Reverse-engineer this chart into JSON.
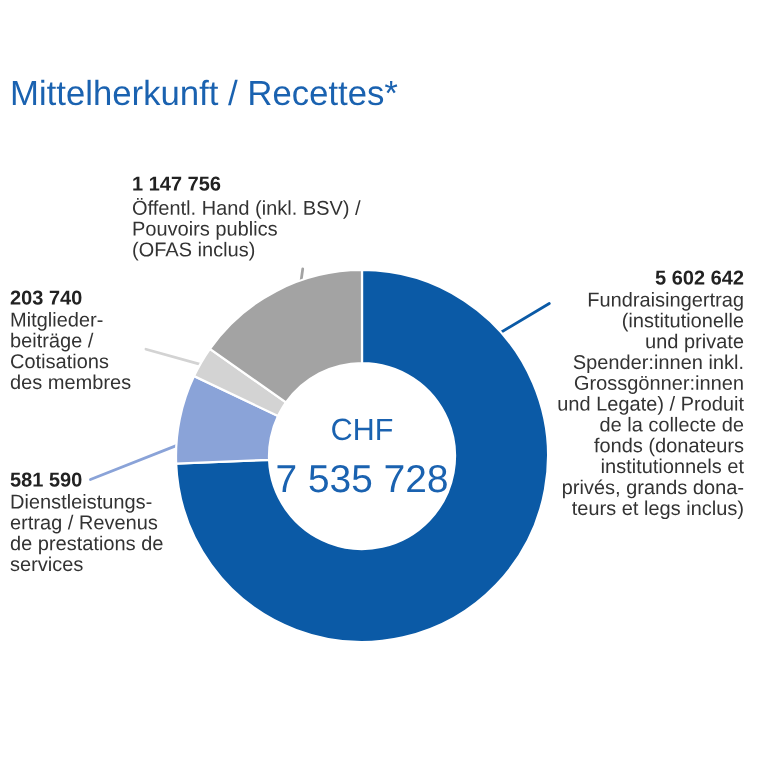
{
  "chart_data": {
    "type": "donut",
    "title": "Mittelherkunft / Recettes*",
    "categories": [
      "Fundraisingertrag\n(institutionelle\nund private\nSpender:innen inkl.\nGrossgönner:innen\nund Legate) / Produit\nde la collecte de\nfonds (donateurs\ninstitutionnels et\nprivés, grands dona-\nteurs et legs inclus)",
      "Dienstleistungs-\nertrag / Revenus\nde prestations de\nservices",
      "Mitglieder-\nbeiträge /\nCotisations\ndes membres",
      "Öffentl. Hand (inkl. BSV) /\nPouvoirs publics\n(OFAS inclus)"
    ],
    "values": [
      5602642,
      581590,
      203740,
      1147756
    ],
    "value_labels": [
      "5 602 642",
      "581 590",
      "203 740",
      "1 147 756"
    ],
    "colors": [
      "#0b5aa6",
      "#8aa3d8",
      "#d3d3d3",
      "#a3a3a3"
    ],
    "annotations": [
      "CHF",
      "7 535 728"
    ]
  }
}
